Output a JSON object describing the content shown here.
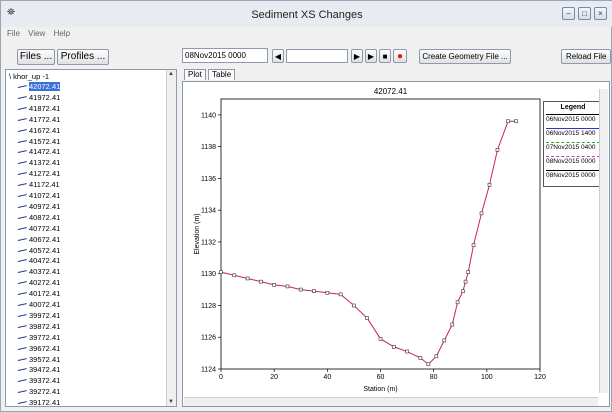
{
  "window": {
    "title": "Sediment XS Changes",
    "icon": "app-icon"
  },
  "menu": [
    "File",
    "View",
    "Help"
  ],
  "toolbar": {
    "files_label": "Files ...",
    "profiles_label": "Profiles ...",
    "time_value": "08Nov2015 0000",
    "create_geometry_label": "Create Geometry File ...",
    "reload_label": "Reload File"
  },
  "tree": {
    "root": "khor_up -1",
    "items": [
      "42072.41",
      "41972.41",
      "41872.41",
      "41772.41",
      "41672.41",
      "41572.41",
      "41472.41",
      "41372.41",
      "41272.41",
      "41172.41",
      "41072.41",
      "40972.41",
      "40872.41",
      "40772.41",
      "40672.41",
      "40572.41",
      "40472.41",
      "40372.41",
      "40272.41",
      "40172.41",
      "40072.41",
      "39972.41",
      "39872.41",
      "39772.41",
      "39672.41",
      "39572.41",
      "39472.41",
      "39372.41",
      "39272.41",
      "39172.41"
    ]
  },
  "tabs": [
    "Plot",
    "Table"
  ],
  "legend": {
    "title": "Legend",
    "entries": [
      {
        "label": "06Nov2015 0000",
        "color": "#000000",
        "style": "solid"
      },
      {
        "label": "06Nov2015 1400",
        "color": "#3333cc",
        "style": "solid"
      },
      {
        "label": "07Nov2015 0400",
        "color": "#22aa22",
        "style": "dashed"
      },
      {
        "label": "08Nov2015 0000",
        "color": "#cc33cc",
        "style": "dashed"
      },
      {
        "label": "08Nov2015 0000",
        "color": "#000000",
        "style": "solid"
      }
    ]
  },
  "chart_data": {
    "type": "line",
    "title": "42072.41",
    "xlabel": "Station (m)",
    "ylabel": "Elevation (m)",
    "xlim": [
      0,
      120
    ],
    "ylim": [
      1124,
      1141
    ],
    "xticks": [
      0,
      20,
      40,
      60,
      80,
      100,
      120
    ],
    "yticks": [
      1124,
      1126,
      1128,
      1130,
      1132,
      1134,
      1136,
      1138,
      1140
    ],
    "series": [
      {
        "color": "#cc2255",
        "x": [
          0,
          5,
          10,
          15,
          20,
          25,
          30,
          35,
          40,
          45,
          50,
          55,
          60,
          65,
          70,
          75,
          78,
          81,
          84,
          87,
          89,
          91,
          92,
          93,
          95,
          98,
          101,
          104,
          108,
          111
        ],
        "y": [
          1130.1,
          1129.9,
          1129.7,
          1129.5,
          1129.3,
          1129.2,
          1129.0,
          1128.9,
          1128.8,
          1128.7,
          1128.0,
          1127.2,
          1125.9,
          1125.4,
          1125.1,
          1124.7,
          1124.3,
          1124.8,
          1125.8,
          1126.8,
          1128.2,
          1128.9,
          1129.5,
          1130.1,
          1131.8,
          1133.8,
          1135.6,
          1137.8,
          1139.6,
          1139.6
        ]
      }
    ]
  }
}
